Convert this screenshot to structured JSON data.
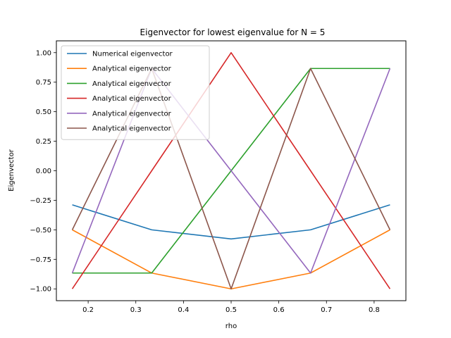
{
  "chart_data": {
    "type": "line",
    "title": "Eigenvector for lowest eigenvalue for N = 5",
    "xlabel": "rho",
    "ylabel": "Eigenvector",
    "x": [
      0.16667,
      0.33333,
      0.5,
      0.66667,
      0.83333
    ],
    "xlim": [
      0.1333,
      0.8667
    ],
    "ylim": [
      -1.1,
      1.1
    ],
    "xticks": [
      0.2,
      0.3,
      0.4,
      0.5,
      0.6,
      0.7,
      0.8
    ],
    "xtick_labels": [
      "0.2",
      "0.3",
      "0.4",
      "0.5",
      "0.6",
      "0.7",
      "0.8"
    ],
    "yticks": [
      -1.0,
      -0.75,
      -0.5,
      -0.25,
      0.0,
      0.25,
      0.5,
      0.75,
      1.0
    ],
    "ytick_labels": [
      "−1.00",
      "−0.75",
      "−0.50",
      "−0.25",
      "0.00",
      "0.25",
      "0.50",
      "0.75",
      "1.00"
    ],
    "grid": false,
    "legend_position": "top-left",
    "series": [
      {
        "name": "Numerical eigenvector",
        "color": "#1f77b4",
        "values": [
          -0.2887,
          -0.5,
          -0.5774,
          -0.5,
          -0.2887
        ]
      },
      {
        "name": "Analytical eigenvector",
        "color": "#ff7f0e",
        "values": [
          -0.5,
          -0.866,
          -1.0,
          -0.866,
          -0.5
        ]
      },
      {
        "name": "Analytical eigenvector",
        "color": "#2ca02c",
        "values": [
          -0.866,
          -0.866,
          0.0,
          0.866,
          0.866
        ]
      },
      {
        "name": "Analytical eigenvector",
        "color": "#d62728",
        "values": [
          -1.0,
          0.0,
          1.0,
          0.0,
          -1.0
        ]
      },
      {
        "name": "Analytical eigenvector",
        "color": "#9467bd",
        "values": [
          -0.866,
          0.866,
          0.0,
          -0.866,
          0.866
        ]
      },
      {
        "name": "Analytical eigenvector",
        "color": "#8c564b",
        "values": [
          -0.5,
          0.866,
          -1.0,
          0.866,
          -0.5
        ]
      }
    ]
  }
}
